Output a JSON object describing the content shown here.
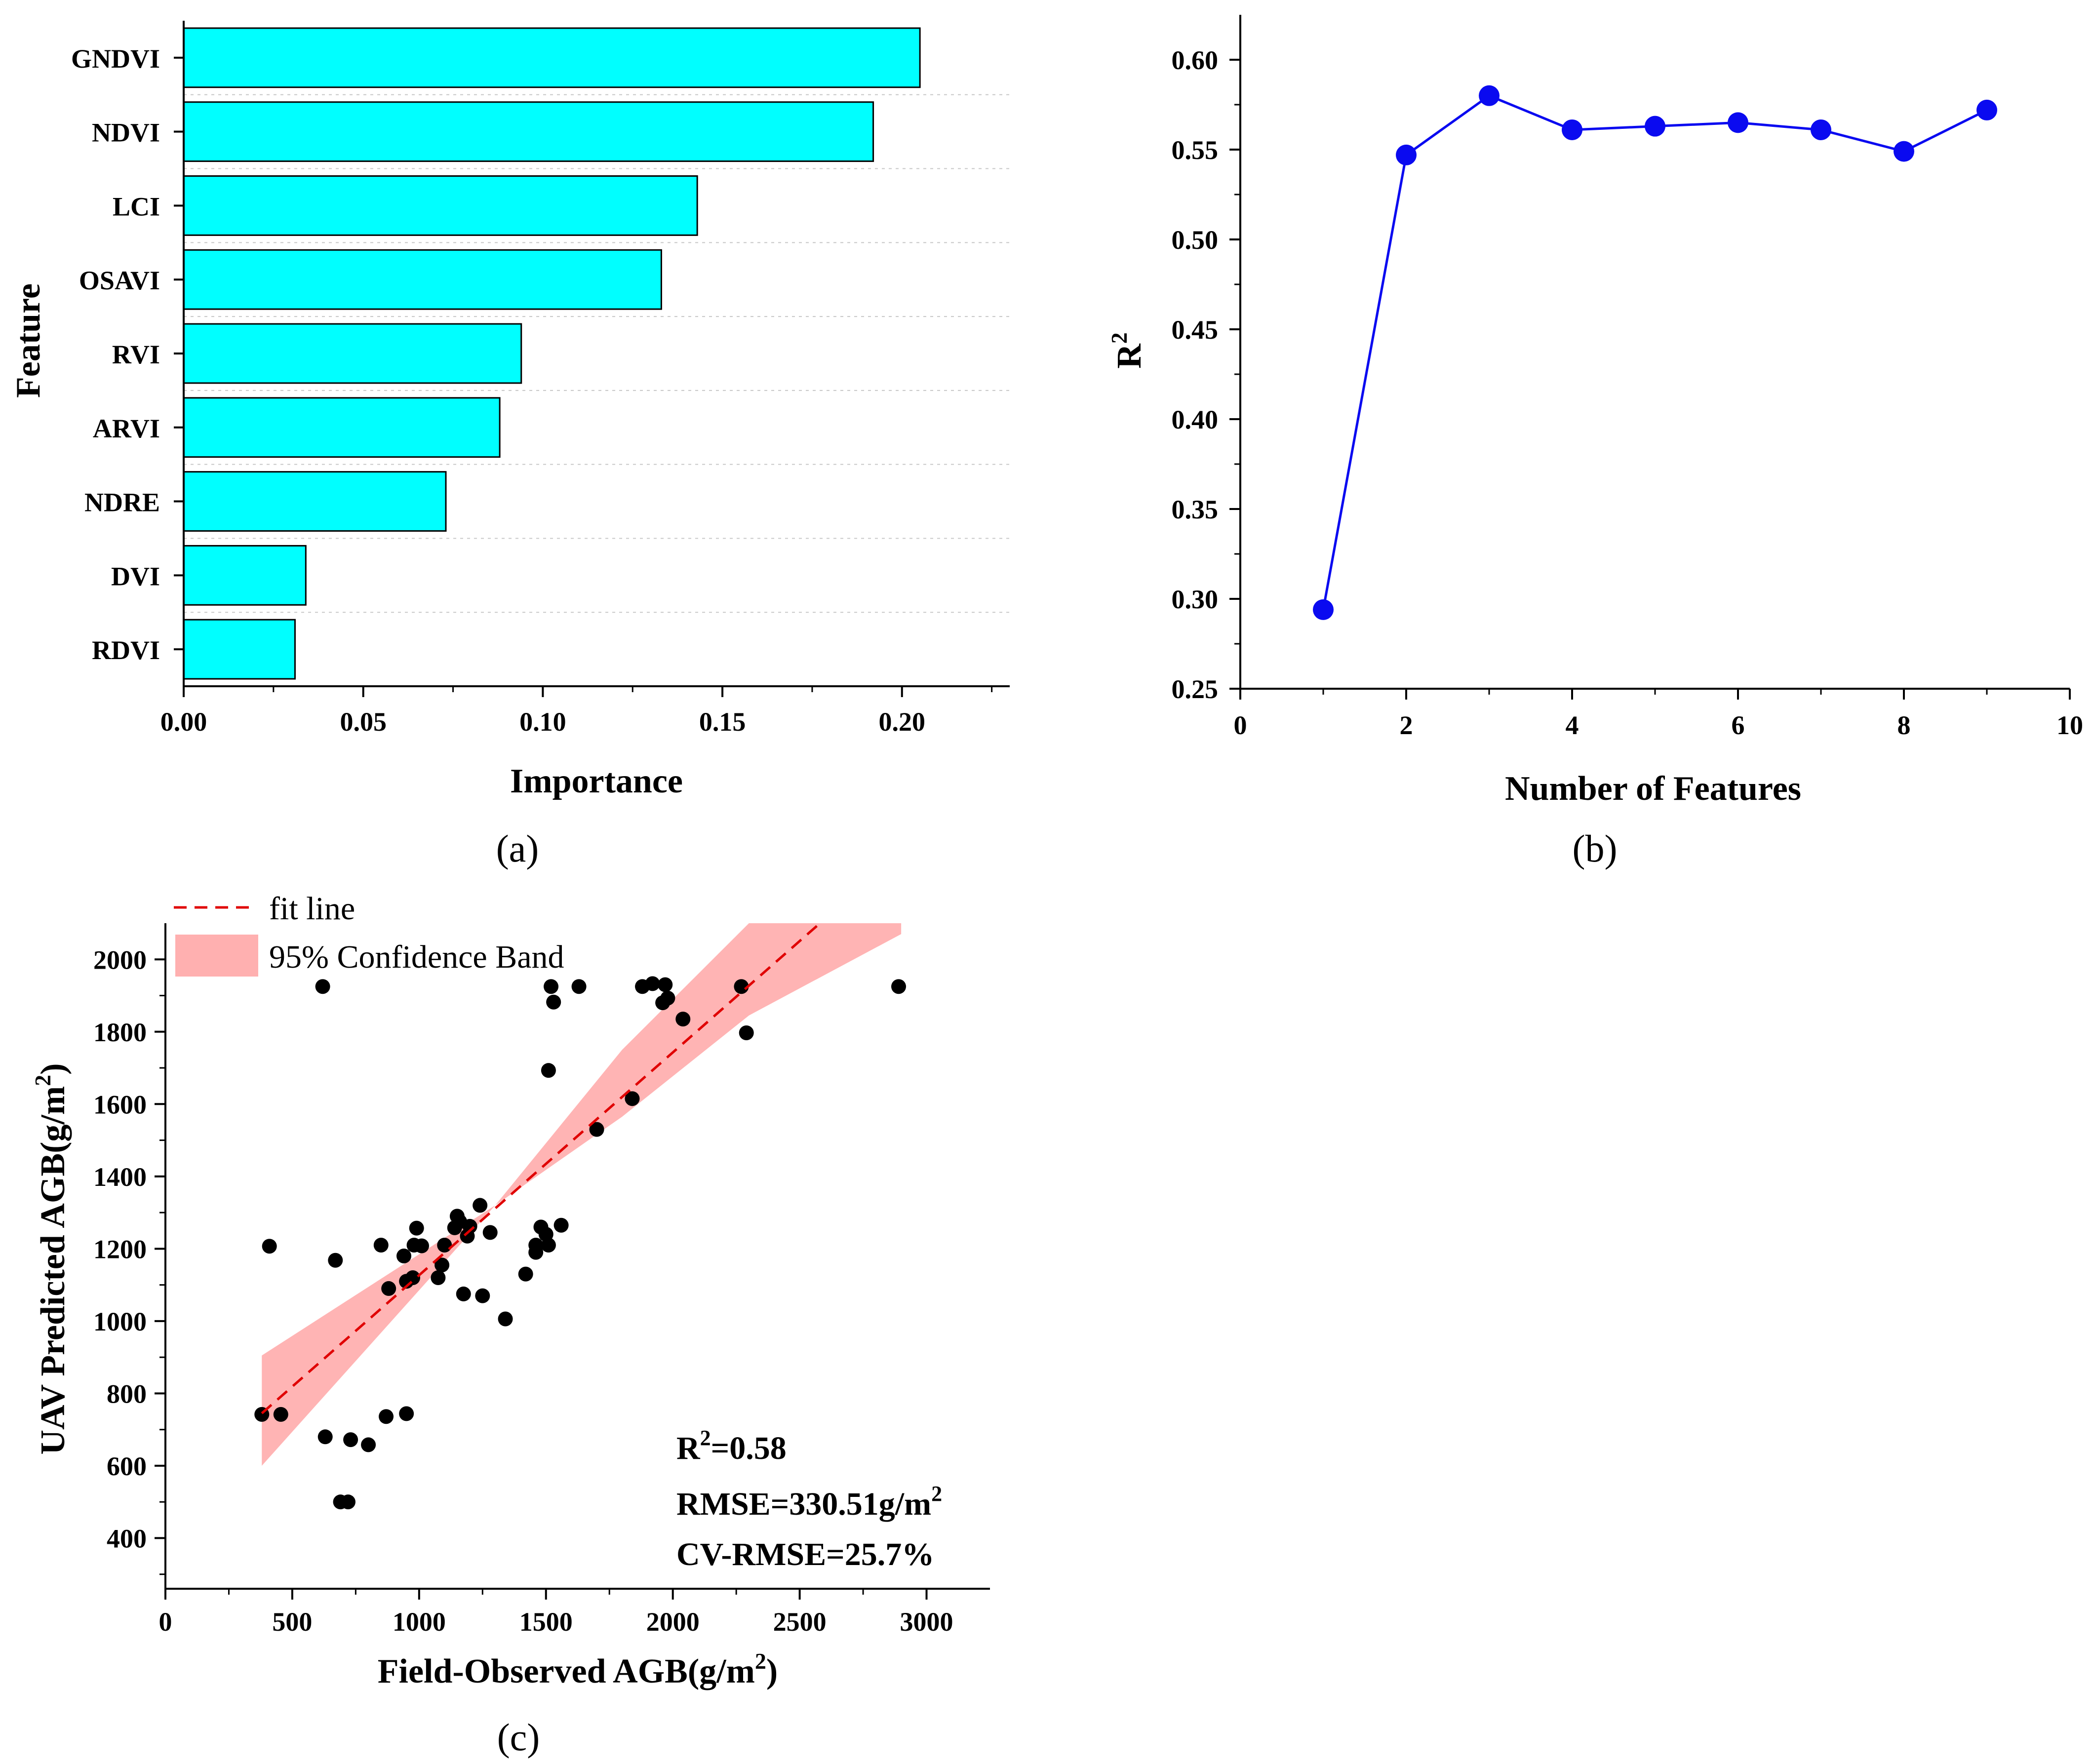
{
  "chart_data": [
    {
      "panel": "(a)",
      "type": "bar",
      "orientation": "horizontal",
      "categories": [
        "GNDVI",
        "NDVI",
        "LCI",
        "OSAVI",
        "RVI",
        "ARVI",
        "NDRE",
        "DVI",
        "RDVI"
      ],
      "values": [
        0.205,
        0.192,
        0.143,
        0.133,
        0.094,
        0.088,
        0.073,
        0.034,
        0.031
      ],
      "xlabel": "Importance",
      "ylabel": "Feature",
      "xlim": [
        0,
        0.23
      ],
      "xticks": [
        "0.00",
        "0.05",
        "0.10",
        "0.15",
        "0.20"
      ],
      "bar_color": "#00ffff",
      "grid": "horizontal dotted"
    },
    {
      "panel": "(b)",
      "type": "line",
      "x": [
        1,
        2,
        3,
        4,
        5,
        6,
        7,
        8,
        9
      ],
      "y": [
        0.294,
        0.547,
        0.58,
        0.561,
        0.563,
        0.565,
        0.561,
        0.549,
        0.572
      ],
      "xlabel": "Number of Features",
      "ylabel_base": "R",
      "ylabel_sup": "2",
      "xlim": [
        0,
        10
      ],
      "ylim": [
        0.25,
        0.625
      ],
      "xticks": [
        "0",
        "2",
        "4",
        "6",
        "8",
        "10"
      ],
      "yticks": [
        "0.25",
        "0.30",
        "0.35",
        "0.40",
        "0.45",
        "0.50",
        "0.55",
        "0.60"
      ],
      "color": "#0a0af0"
    },
    {
      "panel": "(c)",
      "type": "scatter",
      "xlabel_pre": "Field-Observed AGB(g/m",
      "xlabel_sup": "2",
      "xlabel_post": ")",
      "ylabel_pre": "UAV Predicted AGB(g/m",
      "ylabel_sup": "2",
      "ylabel_post": ")",
      "xlim": [
        0,
        3250
      ],
      "ylim": [
        260,
        2100
      ],
      "xticks": [
        "0",
        "500",
        "1000",
        "1500",
        "2000",
        "2500",
        "3000"
      ],
      "yticks": [
        "400",
        "600",
        "800",
        "1000",
        "1200",
        "1400",
        "1600",
        "1800",
        "2000"
      ],
      "points": [
        [
          380,
          742
        ],
        [
          455,
          742
        ],
        [
          410,
          1207
        ],
        [
          620,
          1925
        ],
        [
          630,
          680
        ],
        [
          670,
          1168
        ],
        [
          690,
          500
        ],
        [
          720,
          500
        ],
        [
          730,
          672
        ],
        [
          800,
          658
        ],
        [
          850,
          1210
        ],
        [
          870,
          736
        ],
        [
          880,
          1090
        ],
        [
          940,
          1180
        ],
        [
          950,
          1110
        ],
        [
          950,
          744
        ],
        [
          975,
          1120
        ],
        [
          980,
          1210
        ],
        [
          990,
          1257
        ],
        [
          1010,
          1208
        ],
        [
          1075,
          1120
        ],
        [
          1090,
          1155
        ],
        [
          1100,
          1210
        ],
        [
          1140,
          1258
        ],
        [
          1150,
          1290
        ],
        [
          1160,
          1275
        ],
        [
          1175,
          1075
        ],
        [
          1190,
          1235
        ],
        [
          1200,
          1262
        ],
        [
          1240,
          1320
        ],
        [
          1250,
          1070
        ],
        [
          1280,
          1245
        ],
        [
          1340,
          1006
        ],
        [
          1420,
          1130
        ],
        [
          1460,
          1210
        ],
        [
          1460,
          1190
        ],
        [
          1480,
          1260
        ],
        [
          1500,
          1240
        ],
        [
          1510,
          1210
        ],
        [
          1510,
          1693
        ],
        [
          1520,
          1925
        ],
        [
          1530,
          1882
        ],
        [
          1560,
          1265
        ],
        [
          1630,
          1925
        ],
        [
          1700,
          1530
        ],
        [
          1840,
          1615
        ],
        [
          1880,
          1925
        ],
        [
          1920,
          1933
        ],
        [
          1960,
          1880
        ],
        [
          1970,
          1930
        ],
        [
          1980,
          1893
        ],
        [
          2040,
          1835
        ],
        [
          2270,
          1925
        ],
        [
          2290,
          1797
        ],
        [
          2890,
          1925
        ]
      ],
      "fit_line": {
        "x1": 380,
        "y1": 745,
        "x2": 2580,
        "y2": 2100
      },
      "band": {
        "upper": [
          [
            380,
            905
          ],
          [
            1300,
            1320
          ],
          [
            1800,
            1750
          ],
          [
            2300,
            2100
          ],
          [
            2900,
            2100
          ]
        ],
        "lower": [
          [
            380,
            600
          ],
          [
            1300,
            1320
          ],
          [
            1800,
            1565
          ],
          [
            2300,
            1845
          ],
          [
            2900,
            2070
          ]
        ]
      },
      "legend": [
        "fit line",
        "95% Confidence Band"
      ],
      "stats": {
        "r2_base": "R",
        "r2_sup": "2",
        "r2_val": "=0.58",
        "rmse": "RMSE=330.51g/m",
        "rmse_sup": "2",
        "cvrmse": "CV-RMSE=25.7%"
      },
      "point_color": "#000000",
      "fit_color": "#e00000",
      "band_color": "#ffb0b0"
    }
  ]
}
